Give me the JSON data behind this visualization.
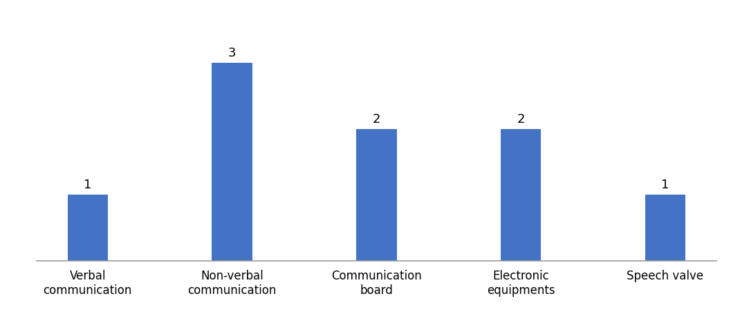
{
  "categories": [
    "Verbal\ncommunication",
    "Non-verbal\ncommunication",
    "Communication\nboard",
    "Electronic\nequipments",
    "Speech valve"
  ],
  "values": [
    1,
    3,
    2,
    2,
    1
  ],
  "bar_color": "#4472C4",
  "bar_width": 0.28,
  "ylim": [
    0,
    3.6
  ],
  "value_fontsize": 13,
  "tick_fontsize": 12,
  "background_color": "#ffffff",
  "spine_color": "#999999"
}
